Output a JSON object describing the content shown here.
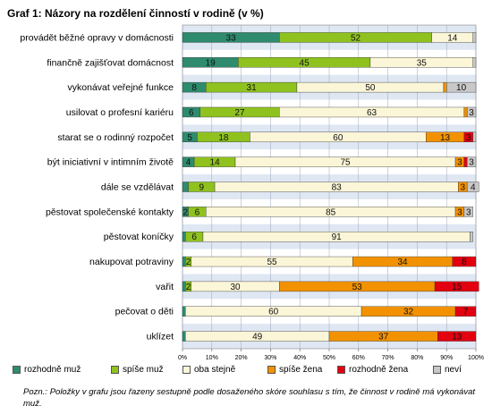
{
  "chart_data": {
    "type": "bar",
    "stacked": true,
    "horizontal": true,
    "title": "Graf 1: Názory na rozdělení činností v rodině (v %)",
    "categories": [
      "provádět běžné opravy v domácnosti",
      "finančně zajišťovat domácnost",
      "vykonávat veřejné funkce",
      "usilovat o profesní kariéru",
      "starat se o rodinný rozpočet",
      "být iniciativní v intimním životě",
      "dále se vzdělávat",
      "pěstovat společenské kontakty",
      "pěstovat koníčky",
      "nakupovat potraviny",
      "vařit",
      "pečovat o děti",
      "uklízet"
    ],
    "series": [
      {
        "name": "rozhodně muž",
        "color": "#2e8b6e",
        "values": [
          33,
          19,
          8,
          6,
          5,
          4,
          2,
          2,
          1,
          1,
          1,
          1,
          1
        ]
      },
      {
        "name": "spíše muž",
        "color": "#8fc21f",
        "values": [
          52,
          45,
          31,
          27,
          18,
          14,
          9,
          6,
          6,
          2,
          2,
          0,
          0
        ]
      },
      {
        "name": "oba stejně",
        "color": "#fbf6d7",
        "values": [
          14,
          35,
          50,
          63,
          60,
          75,
          83,
          85,
          91,
          55,
          30,
          60,
          49
        ]
      },
      {
        "name": "spíše žena",
        "color": "#f39200",
        "values": [
          0,
          0,
          1,
          1,
          13,
          3,
          3,
          3,
          0,
          34,
          53,
          32,
          37
        ]
      },
      {
        "name": "rozhodně žena",
        "color": "#e3000f",
        "values": [
          0,
          0,
          0,
          0,
          3,
          1,
          0,
          0,
          0,
          8,
          15,
          7,
          13
        ]
      },
      {
        "name": "neví",
        "color": "#c8c8c8",
        "values": [
          1,
          1,
          10,
          3,
          1,
          3,
          4,
          3,
          1,
          0,
          0,
          0,
          0
        ]
      }
    ],
    "data_labels": [
      [
        "33",
        "52",
        "14",
        "",
        "",
        ""
      ],
      [
        "19",
        "45",
        "35",
        "",
        "",
        ""
      ],
      [
        "8",
        "31",
        "50",
        "",
        "",
        "10"
      ],
      [
        "6",
        "27",
        "63",
        "",
        "",
        "3"
      ],
      [
        "5",
        "18",
        "60",
        "13",
        "3",
        ""
      ],
      [
        "4",
        "14",
        "75",
        "3",
        "",
        "3"
      ],
      [
        "",
        "9",
        "83",
        "3",
        "",
        "4"
      ],
      [
        "2",
        "6",
        "85",
        "3",
        "",
        "3"
      ],
      [
        "",
        "6",
        "91",
        "",
        "",
        ""
      ],
      [
        "",
        "2",
        "55",
        "34",
        "8",
        ""
      ],
      [
        "",
        "2",
        "30",
        "53",
        "15",
        ""
      ],
      [
        "",
        "",
        "60",
        "32",
        "7",
        ""
      ],
      [
        "",
        "",
        "49",
        "37",
        "13",
        ""
      ]
    ],
    "xlim": [
      0,
      100
    ],
    "xticks": [
      "0%",
      "10%",
      "20%",
      "30%",
      "40%",
      "50%",
      "60%",
      "70%",
      "80%",
      "90%",
      "100%"
    ],
    "grid": true,
    "legend_position": "bottom"
  },
  "footnote": "Pozn.: Položky v grafu jsou řazeny sestupně podle dosaženého skóre souhlasu s tím, že činnost v rodině má vykonávat muž."
}
